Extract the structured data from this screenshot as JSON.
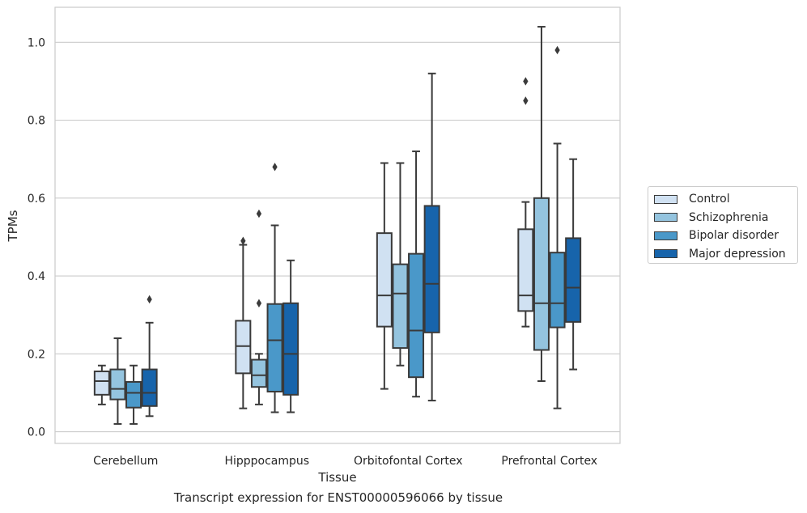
{
  "caption": "Transcript expression for ENST00000596066 by tissue",
  "chart_data": {
    "type": "box",
    "title": "",
    "xlabel": "Tissue",
    "ylabel": "TPMs",
    "ylim": [
      -0.03,
      1.09
    ],
    "yticks": [
      0.0,
      0.2,
      0.4,
      0.6,
      0.8,
      1.0
    ],
    "ytick_labels": [
      "0.0",
      "0.2",
      "0.4",
      "0.6",
      "0.8",
      "1.0"
    ],
    "grid": "horizontal",
    "legend_position": "right",
    "categories": [
      "Cerebellum",
      "Hipppocampus",
      "Orbitofontal Cortex",
      "Prefrontal Cortex"
    ],
    "series": [
      {
        "name": "Control",
        "color": "#d0e1f2",
        "boxes": [
          {
            "whislo": 0.07,
            "q1": 0.095,
            "med": 0.13,
            "q3": 0.155,
            "whishi": 0.17,
            "fliers": []
          },
          {
            "whislo": 0.06,
            "q1": 0.15,
            "med": 0.22,
            "q3": 0.285,
            "whishi": 0.48,
            "fliers": [
              0.49
            ]
          },
          {
            "whislo": 0.11,
            "q1": 0.27,
            "med": 0.35,
            "q3": 0.51,
            "whishi": 0.69,
            "fliers": []
          },
          {
            "whislo": 0.27,
            "q1": 0.31,
            "med": 0.35,
            "q3": 0.52,
            "whishi": 0.59,
            "fliers": [
              0.85,
              0.9
            ]
          }
        ]
      },
      {
        "name": "Schizophrenia",
        "color": "#94c4df",
        "boxes": [
          {
            "whislo": 0.02,
            "q1": 0.083,
            "med": 0.11,
            "q3": 0.16,
            "whishi": 0.24,
            "fliers": []
          },
          {
            "whislo": 0.07,
            "q1": 0.115,
            "med": 0.145,
            "q3": 0.185,
            "whishi": 0.2,
            "fliers": [
              0.33,
              0.56
            ]
          },
          {
            "whislo": 0.17,
            "q1": 0.215,
            "med": 0.355,
            "q3": 0.43,
            "whishi": 0.69,
            "fliers": []
          },
          {
            "whislo": 0.13,
            "q1": 0.21,
            "med": 0.33,
            "q3": 0.6,
            "whishi": 1.04,
            "fliers": []
          }
        ]
      },
      {
        "name": "Bipolar disorder",
        "color": "#4a98c9",
        "boxes": [
          {
            "whislo": 0.02,
            "q1": 0.062,
            "med": 0.1,
            "q3": 0.128,
            "whishi": 0.17,
            "fliers": []
          },
          {
            "whislo": 0.05,
            "q1": 0.103,
            "med": 0.235,
            "q3": 0.328,
            "whishi": 0.53,
            "fliers": [
              0.68
            ]
          },
          {
            "whislo": 0.09,
            "q1": 0.14,
            "med": 0.26,
            "q3": 0.457,
            "whishi": 0.72,
            "fliers": []
          },
          {
            "whislo": 0.06,
            "q1": 0.268,
            "med": 0.33,
            "q3": 0.46,
            "whishi": 0.74,
            "fliers": [
              0.98
            ]
          }
        ]
      },
      {
        "name": "Major depression",
        "color": "#1764ab",
        "boxes": [
          {
            "whislo": 0.04,
            "q1": 0.066,
            "med": 0.1,
            "q3": 0.16,
            "whishi": 0.28,
            "fliers": [
              0.34
            ]
          },
          {
            "whislo": 0.05,
            "q1": 0.095,
            "med": 0.2,
            "q3": 0.33,
            "whishi": 0.44,
            "fliers": []
          },
          {
            "whislo": 0.08,
            "q1": 0.255,
            "med": 0.38,
            "q3": 0.58,
            "whishi": 0.92,
            "fliers": []
          },
          {
            "whislo": 0.16,
            "q1": 0.282,
            "med": 0.37,
            "q3": 0.497,
            "whishi": 0.7,
            "fliers": []
          }
        ]
      }
    ]
  }
}
